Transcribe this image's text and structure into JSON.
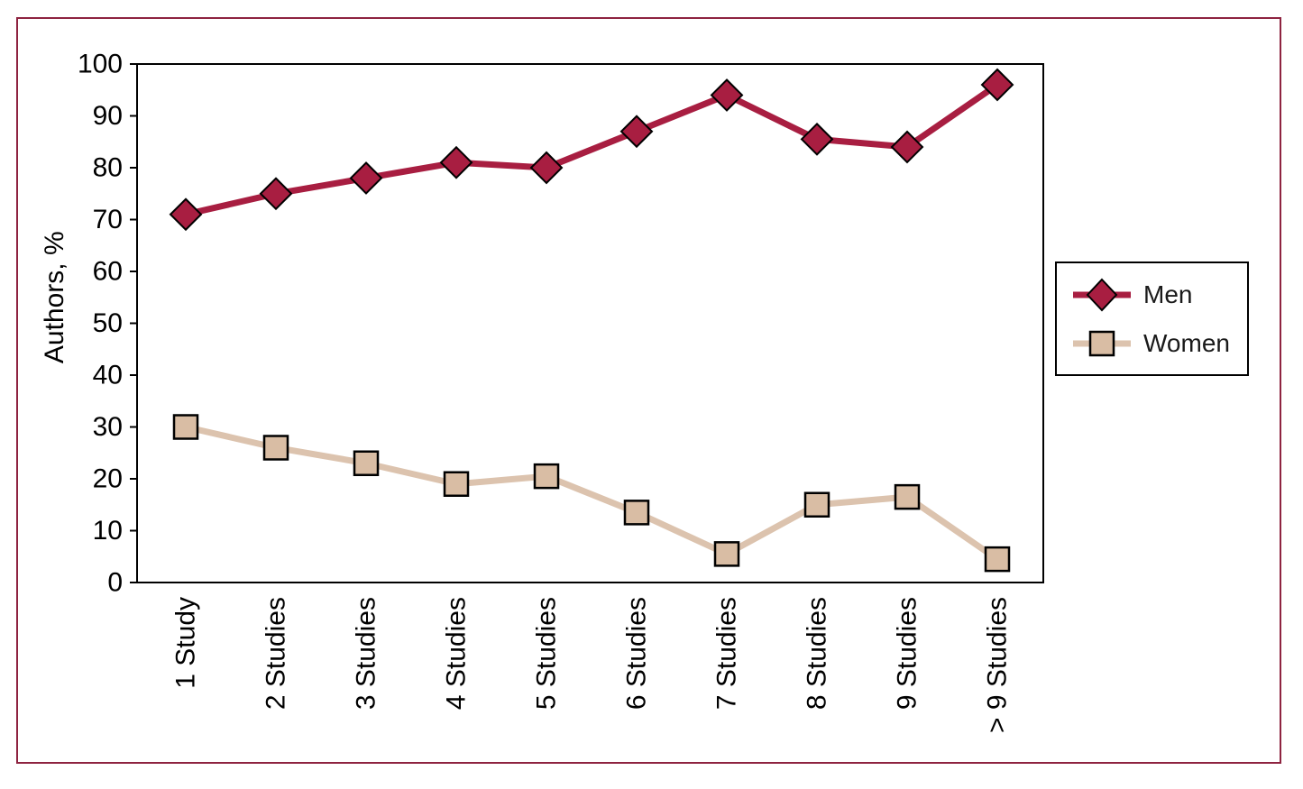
{
  "figure": {
    "outer_border_color": "#8e2340",
    "frame_color": "#000000"
  },
  "chart_data": {
    "type": "line",
    "title": "",
    "xlabel": "",
    "ylabel": "Authors, %",
    "ylim": [
      0,
      100
    ],
    "ytick_step": 10,
    "grid": false,
    "legend_position": "right-outside",
    "categories": [
      "1 Study",
      "2 Studies",
      "3 Studies",
      "4 Studies",
      "5 Studies",
      "6 Studies",
      "7 Studies",
      "8 Studies",
      "9 Studies",
      "> 9 Studies"
    ],
    "series": [
      {
        "name": "Men",
        "marker": "diamond",
        "line_color": "#a81e41",
        "fill_color": "#a81e41",
        "values": [
          71,
          75,
          78,
          81,
          80,
          87,
          94,
          85.5,
          84,
          96
        ]
      },
      {
        "name": "Women",
        "marker": "square",
        "line_color": "#dcc3ae",
        "fill_color": "#d9bda4",
        "values": [
          30,
          26,
          23,
          19,
          20.5,
          13.5,
          5.5,
          15,
          16.5,
          4.5
        ]
      }
    ]
  }
}
